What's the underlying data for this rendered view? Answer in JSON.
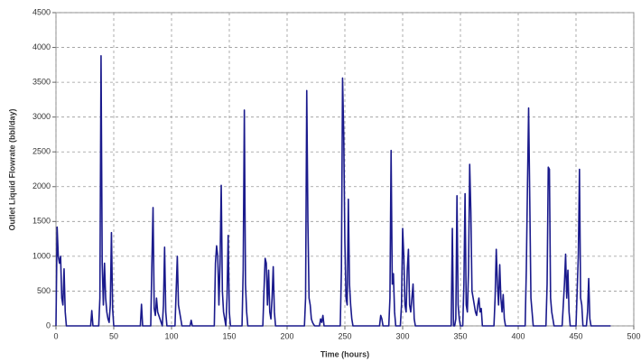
{
  "chart_data": {
    "type": "line",
    "x_label": "Time (hours)",
    "y_label": "Outlet Liquid Flowrate (bbl/day)",
    "color": "#1a1a8c",
    "grid": true,
    "xlim": [
      0,
      500
    ],
    "xticks": [
      0,
      50,
      100,
      150,
      200,
      250,
      300,
      350,
      400,
      450,
      500
    ],
    "ylim": [
      0,
      4500
    ],
    "yticks": [
      0,
      500,
      1000,
      1500,
      2000,
      2500,
      3000,
      3500,
      4000,
      4500
    ],
    "x": [
      0,
      1,
      2,
      3,
      4,
      5,
      6,
      7,
      8,
      9,
      10,
      30,
      31,
      32,
      37,
      38,
      39,
      40,
      41,
      42,
      43,
      44,
      45,
      46,
      47,
      48,
      49,
      50,
      73,
      74,
      75,
      82,
      83,
      84,
      85,
      86,
      87,
      88,
      92,
      93,
      94,
      95,
      96,
      103,
      104,
      105,
      106,
      107,
      108,
      109,
      116,
      117,
      118,
      137,
      138,
      139,
      140,
      141,
      142,
      143,
      144,
      145,
      146,
      147,
      148,
      149,
      150,
      151,
      161,
      162,
      163,
      164,
      165,
      166,
      179,
      180,
      181,
      182,
      183,
      184,
      185,
      186,
      187,
      188,
      189,
      190,
      215,
      216,
      217,
      218,
      219,
      220,
      221,
      222,
      223,
      224,
      228,
      229,
      230,
      231,
      232,
      246,
      247,
      248,
      249,
      250,
      251,
      252,
      253,
      254,
      255,
      256,
      257,
      280,
      281,
      282,
      283,
      288,
      289,
      290,
      291,
      292,
      293,
      294,
      298,
      299,
      300,
      301,
      302,
      303,
      304,
      305,
      306,
      307,
      308,
      309,
      310,
      311,
      342,
      343,
      344,
      345,
      346,
      347,
      348,
      349,
      350,
      352,
      353,
      354,
      355,
      356,
      357,
      358,
      359,
      360,
      361,
      362,
      363,
      364,
      365,
      366,
      367,
      368,
      369,
      379,
      380,
      381,
      382,
      383,
      384,
      385,
      386,
      387,
      388,
      389,
      406,
      407,
      408,
      409,
      410,
      411,
      412,
      413,
      424,
      425,
      426,
      427,
      428,
      429,
      430,
      431,
      438,
      439,
      440,
      441,
      442,
      443,
      444,
      445,
      450,
      451,
      452,
      453,
      454,
      455,
      456,
      459,
      460,
      461,
      462,
      463,
      480
    ],
    "values": [
      0,
      1420,
      1000,
      900,
      1000,
      400,
      300,
      820,
      200,
      0,
      0,
      0,
      220,
      0,
      0,
      400,
      3880,
      900,
      300,
      900,
      400,
      200,
      100,
      50,
      300,
      1340,
      250,
      0,
      0,
      310,
      0,
      0,
      900,
      1700,
      250,
      150,
      400,
      200,
      0,
      300,
      1130,
      200,
      0,
      0,
      500,
      1000,
      300,
      200,
      100,
      0,
      0,
      80,
      0,
      0,
      900,
      1150,
      1000,
      300,
      900,
      2020,
      500,
      200,
      100,
      0,
      400,
      1300,
      200,
      0,
      0,
      800,
      3100,
      600,
      200,
      0,
      0,
      500,
      970,
      900,
      300,
      800,
      200,
      100,
      400,
      850,
      200,
      0,
      0,
      400,
      3380,
      1500,
      400,
      300,
      100,
      50,
      20,
      0,
      0,
      100,
      50,
      150,
      0,
      0,
      800,
      3560,
      2750,
      1200,
      400,
      300,
      1820,
      600,
      300,
      100,
      0,
      0,
      150,
      100,
      0,
      0,
      400,
      2520,
      600,
      750,
      200,
      0,
      0,
      300,
      1400,
      1000,
      300,
      200,
      800,
      1100,
      300,
      200,
      400,
      600,
      100,
      0,
      0,
      1400,
      0,
      0,
      100,
      1870,
      300,
      100,
      0,
      0,
      600,
      1900,
      300,
      200,
      800,
      2320,
      1650,
      500,
      400,
      300,
      200,
      150,
      300,
      400,
      200,
      250,
      0,
      0,
      400,
      1100,
      600,
      300,
      880,
      400,
      200,
      450,
      100,
      0,
      0,
      800,
      2000,
      3130,
      1800,
      400,
      200,
      0,
      0,
      600,
      2280,
      2250,
      400,
      200,
      100,
      0,
      0,
      300,
      600,
      1030,
      400,
      800,
      200,
      0,
      0,
      500,
      1000,
      2250,
      400,
      300,
      0,
      0,
      200,
      680,
      100,
      0,
      0
    ]
  }
}
